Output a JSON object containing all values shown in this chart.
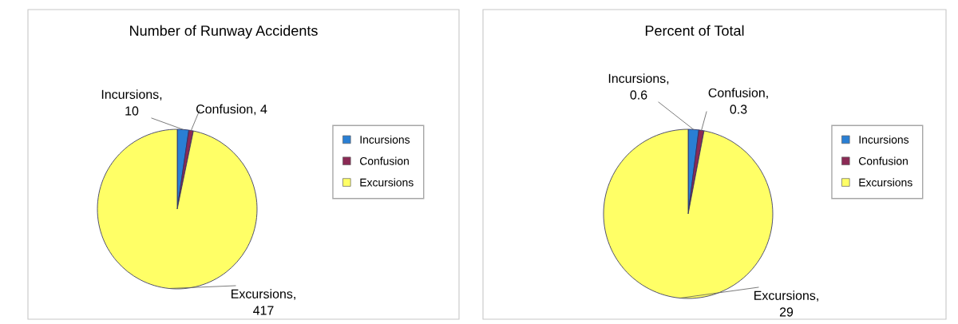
{
  "chart_data": [
    {
      "type": "pie",
      "title": "Number of Runway Accidents",
      "categories": [
        "Incursions",
        "Confusion",
        "Excursions"
      ],
      "values": [
        10,
        4,
        417
      ],
      "value_labels": [
        "Incursions, 10",
        "Confusion, 4",
        "Excursions, 417"
      ],
      "colors": [
        "#2a7fd4",
        "#8b2a55",
        "#ffff66"
      ],
      "legend": "right"
    },
    {
      "type": "pie",
      "title": "Percent of Total",
      "categories": [
        "Incursions",
        "Confusion",
        "Excursions"
      ],
      "values": [
        0.6,
        0.3,
        29
      ],
      "value_labels": [
        "Incursions, 0.6",
        "Confusion, 0.3",
        "Excursions, 29"
      ],
      "colors": [
        "#2a7fd4",
        "#8b2a55",
        "#ffff66"
      ],
      "legend": "right"
    }
  ]
}
